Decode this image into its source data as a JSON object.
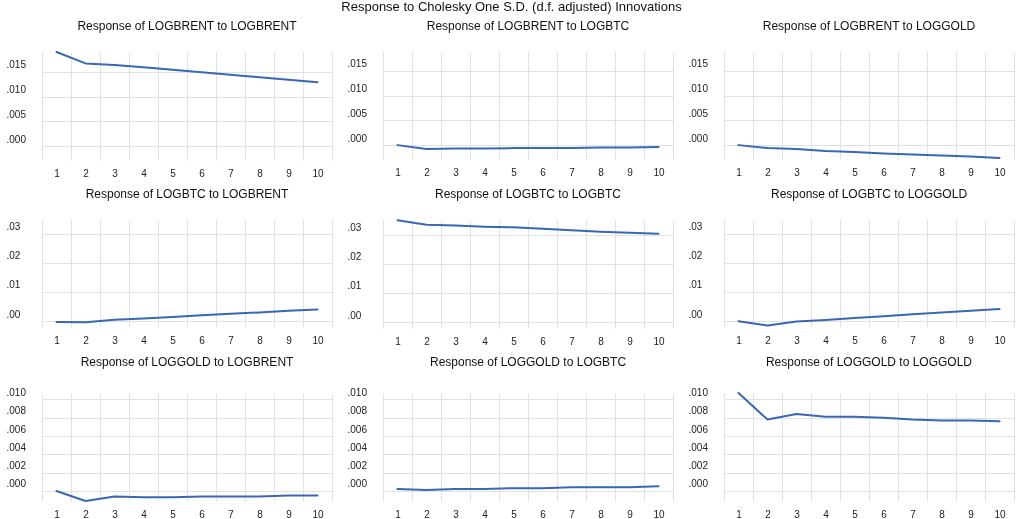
{
  "chart_data": [
    {
      "type": "other",
      "title": "Response to Cholesky One S.D. (d.f. adjusted) Innovations"
    },
    {
      "type": "line",
      "title": "Response of LOGBRENT to LOGBRENT",
      "categories": [
        "1",
        "2",
        "3",
        "4",
        "5",
        "6",
        "7",
        "8",
        "9",
        "10"
      ],
      "color": "#3a67b4",
      "grid": true,
      "ylim": [
        -0.0028,
        0.019
      ],
      "yticks": [
        {
          "value": 0,
          "label": ".000"
        },
        {
          "value": 0.005,
          "label": ".005"
        },
        {
          "value": 0.01,
          "label": ".010"
        },
        {
          "value": 0.015,
          "label": ".015"
        }
      ],
      "values": [
        0.019,
        0.0167,
        0.0164,
        0.0159,
        0.0154,
        0.0149,
        0.0144,
        0.0139,
        0.0134,
        0.0129
      ]
    },
    {
      "type": "line",
      "title": "Response of LOGBRENT to LOGBTC",
      "categories": [
        "1",
        "2",
        "3",
        "4",
        "5",
        "6",
        "7",
        "8",
        "9",
        "10"
      ],
      "color": "#3a67b4",
      "grid": true,
      "ylim": [
        -0.0028,
        0.019
      ],
      "yticks": [
        {
          "value": 0,
          "label": ".000"
        },
        {
          "value": 0.005,
          "label": ".005"
        },
        {
          "value": 0.01,
          "label": ".010"
        },
        {
          "value": 0.015,
          "label": ".015"
        }
      ],
      "values": [
        0,
        -0.0008,
        -0.0007,
        -0.0007,
        -0.0006,
        -0.0006,
        -0.0006,
        -0.0005,
        -0.0005,
        -0.0004
      ]
    },
    {
      "type": "line",
      "title": "Response of LOGBRENT to LOGGOLD",
      "categories": [
        "1",
        "2",
        "3",
        "4",
        "5",
        "6",
        "7",
        "8",
        "9",
        "10"
      ],
      "color": "#3a67b4",
      "grid": true,
      "ylim": [
        -0.0028,
        0.019
      ],
      "yticks": [
        {
          "value": 0,
          "label": ".000"
        },
        {
          "value": 0.005,
          "label": ".005"
        },
        {
          "value": 0.01,
          "label": ".010"
        },
        {
          "value": 0.015,
          "label": ".015"
        }
      ],
      "values": [
        0,
        -0.0006,
        -0.0008,
        -0.0012,
        -0.0014,
        -0.0017,
        -0.0019,
        -0.0021,
        -0.0023,
        -0.0026
      ]
    },
    {
      "type": "line",
      "title": "Response of LOGBTC to LOGBRENT",
      "categories": [
        "1",
        "2",
        "3",
        "4",
        "5",
        "6",
        "7",
        "8",
        "9",
        "10"
      ],
      "color": "#3a67b4",
      "grid": true,
      "ylim": [
        -0.002,
        0.035
      ],
      "yticks": [
        {
          "value": 0,
          "label": ".00"
        },
        {
          "value": 0.01,
          "label": ".01"
        },
        {
          "value": 0.02,
          "label": ".02"
        },
        {
          "value": 0.03,
          "label": ".03"
        }
      ],
      "values": [
        -0.0003,
        -0.0004,
        0.0005,
        0.0009,
        0.0014,
        0.002,
        0.0025,
        0.003,
        0.0036,
        0.004
      ]
    },
    {
      "type": "line",
      "title": "Response of LOGBTC to LOGBTC",
      "categories": [
        "1",
        "2",
        "3",
        "4",
        "5",
        "6",
        "7",
        "8",
        "9",
        "10"
      ],
      "color": "#3a67b4",
      "grid": true,
      "ylim": [
        -0.002,
        0.035
      ],
      "yticks": [
        {
          "value": 0,
          "label": ".00"
        },
        {
          "value": 0.01,
          "label": ".01"
        },
        {
          "value": 0.02,
          "label": ".02"
        },
        {
          "value": 0.03,
          "label": ".03"
        }
      ],
      "values": [
        0.0349,
        0.0334,
        0.0331,
        0.0327,
        0.0325,
        0.032,
        0.0315,
        0.031,
        0.0306,
        0.0303
      ]
    },
    {
      "type": "line",
      "title": "Response of LOGBTC to LOGGOLD",
      "categories": [
        "1",
        "2",
        "3",
        "4",
        "5",
        "6",
        "7",
        "8",
        "9",
        "10"
      ],
      "color": "#3a67b4",
      "grid": true,
      "ylim": [
        -0.002,
        0.035
      ],
      "yticks": [
        {
          "value": 0,
          "label": ".00"
        },
        {
          "value": 0.01,
          "label": ".01"
        },
        {
          "value": 0.02,
          "label": ".02"
        },
        {
          "value": 0.03,
          "label": ".03"
        }
      ],
      "values": [
        0,
        -0.0015,
        -0.0001,
        0.0004,
        0.0011,
        0.0017,
        0.0024,
        0.003,
        0.0036,
        0.0042
      ]
    },
    {
      "type": "line",
      "title": "Response of LOGGOLD to LOGBRENT",
      "categories": [
        "1",
        "2",
        "3",
        "4",
        "5",
        "6",
        "7",
        "8",
        "9",
        "10"
      ],
      "color": "#3a67b4",
      "grid": true,
      "ylim": [
        -0.0011,
        0.0107
      ],
      "yticks": [
        {
          "value": 0,
          "label": ".000"
        },
        {
          "value": 0.002,
          "label": ".002"
        },
        {
          "value": 0.004,
          "label": ".004"
        },
        {
          "value": 0.006,
          "label": ".006"
        },
        {
          "value": 0.008,
          "label": ".008"
        },
        {
          "value": 0.01,
          "label": ".010"
        }
      ],
      "values": [
        0,
        -0.0011,
        -0.0006,
        -0.0007,
        -0.0007,
        -0.0006,
        -0.0006,
        -0.0006,
        -0.0005,
        -0.0005
      ]
    },
    {
      "type": "line",
      "title": "Response of LOGGOLD to LOGBTC",
      "categories": [
        "1",
        "2",
        "3",
        "4",
        "5",
        "6",
        "7",
        "8",
        "9",
        "10"
      ],
      "color": "#3a67b4",
      "grid": true,
      "ylim": [
        -0.0011,
        0.0107
      ],
      "yticks": [
        {
          "value": 0,
          "label": ".000"
        },
        {
          "value": 0.002,
          "label": ".002"
        },
        {
          "value": 0.004,
          "label": ".004"
        },
        {
          "value": 0.006,
          "label": ".006"
        },
        {
          "value": 0.008,
          "label": ".008"
        },
        {
          "value": 0.01,
          "label": ".010"
        }
      ],
      "values": [
        0.0002,
        0.0001,
        0.0002,
        0.0002,
        0.0003,
        0.0003,
        0.0004,
        0.0004,
        0.0004,
        0.0005
      ]
    },
    {
      "type": "line",
      "title": "Response of LOGGOLD to LOGGOLD",
      "categories": [
        "1",
        "2",
        "3",
        "4",
        "5",
        "6",
        "7",
        "8",
        "9",
        "10"
      ],
      "color": "#3a67b4",
      "grid": true,
      "ylim": [
        -0.0011,
        0.0107
      ],
      "yticks": [
        {
          "value": 0,
          "label": ".000"
        },
        {
          "value": 0.002,
          "label": ".002"
        },
        {
          "value": 0.004,
          "label": ".004"
        },
        {
          "value": 0.006,
          "label": ".006"
        },
        {
          "value": 0.008,
          "label": ".008"
        },
        {
          "value": 0.01,
          "label": ".010"
        }
      ],
      "values": [
        0.0107,
        0.0078,
        0.0084,
        0.0081,
        0.0081,
        0.008,
        0.0078,
        0.0077,
        0.0077,
        0.0076
      ]
    }
  ]
}
